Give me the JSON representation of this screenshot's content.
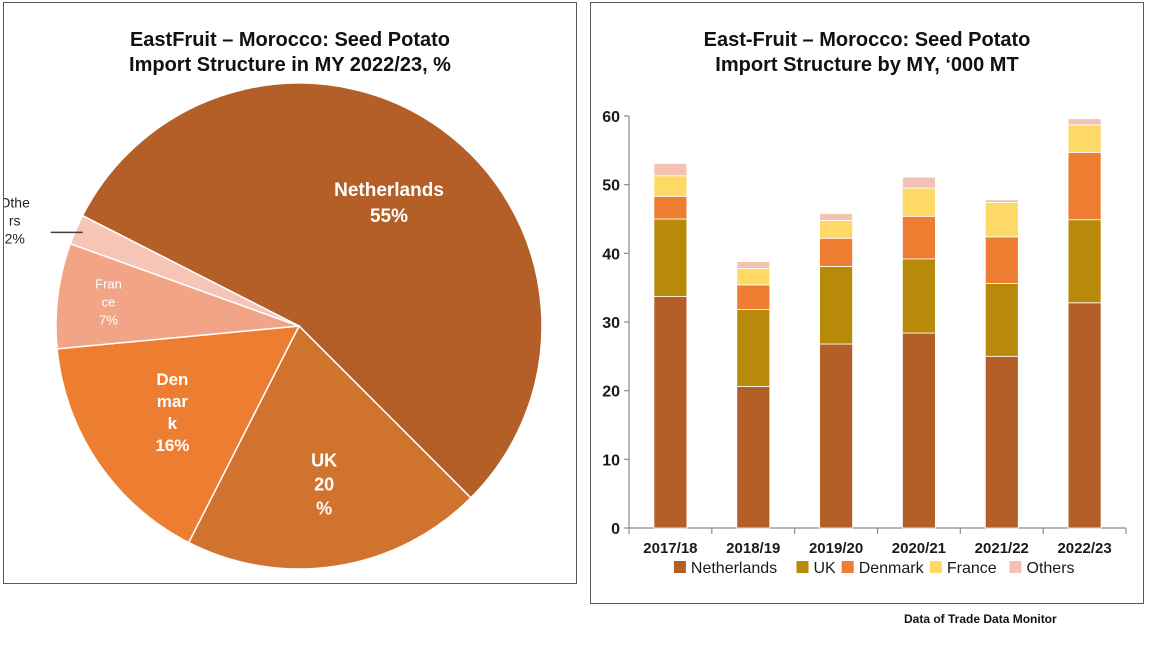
{
  "source_note": "Data of Trade Data Monitor",
  "colors": {
    "Netherlands": "#b45f27",
    "UK": "#b88a0a",
    "Denmark": "#ed7d31",
    "France": "#ffd966",
    "Others": "#f4c2b2",
    "pie_Denmark": "#ed7d31",
    "pie_UK": "#d0732e",
    "pie_France": "#f2a586",
    "pie_Others": "#f6c5b7"
  },
  "chart_data": [
    {
      "type": "pie",
      "title_lines": [
        "EastFruit – Morocco: Seed Potato",
        "Import Structure in MY 2022/23, %"
      ],
      "slices": [
        {
          "name": "Netherlands",
          "value": 55,
          "label_lines": [
            "Netherlands",
            "55%"
          ]
        },
        {
          "name": "UK",
          "value": 20,
          "label_lines": [
            "UK",
            "20",
            "%"
          ]
        },
        {
          "name": "Denmark",
          "value": 16,
          "label_lines": [
            "Den",
            "mar",
            "k",
            "16%"
          ]
        },
        {
          "name": "France",
          "value": 7,
          "label_lines": [
            "Fran",
            "ce",
            "7%"
          ]
        },
        {
          "name": "Others",
          "value": 2,
          "label_lines": [
            "Othe",
            "rs",
            "2%"
          ]
        }
      ]
    },
    {
      "type": "bar",
      "stacked": true,
      "title_lines": [
        "East-Fruit – Morocco: Seed Potato",
        "Import Structure by MY, ‘000 MT"
      ],
      "categories": [
        "2017/18",
        "2018/19",
        "2019/20",
        "2020/21",
        "2021/22",
        "2022/23"
      ],
      "ylim": [
        0,
        60
      ],
      "yticks": [
        0,
        10,
        20,
        30,
        40,
        50,
        60
      ],
      "grid": false,
      "legend_position": "bottom",
      "series": [
        {
          "name": "Netherlands",
          "values": [
            33.7,
            20.6,
            26.8,
            28.4,
            25.0,
            32.8
          ]
        },
        {
          "name": "UK",
          "values": [
            11.3,
            11.2,
            11.3,
            10.8,
            10.6,
            12.1
          ]
        },
        {
          "name": "Denmark",
          "values": [
            3.3,
            3.6,
            4.1,
            6.2,
            6.8,
            9.8
          ]
        },
        {
          "name": "France",
          "values": [
            3.0,
            2.4,
            2.6,
            4.1,
            5.0,
            4.0
          ]
        },
        {
          "name": "Others",
          "values": [
            1.8,
            1.0,
            1.0,
            1.6,
            0.4,
            0.9
          ]
        }
      ]
    }
  ]
}
